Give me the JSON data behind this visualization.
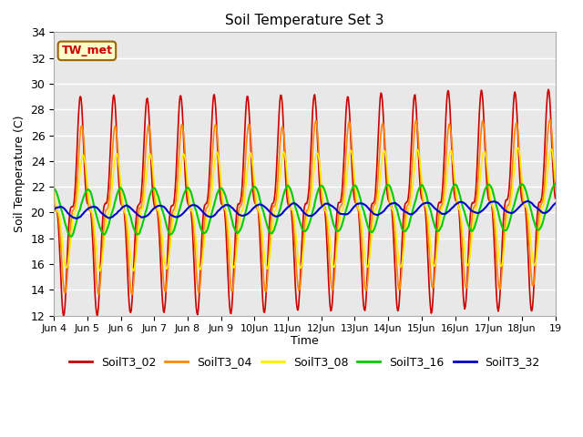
{
  "title": "Soil Temperature Set 3",
  "xlabel": "Time",
  "ylabel": "Soil Temperature (C)",
  "ylim": [
    12,
    34
  ],
  "yticks": [
    12,
    14,
    16,
    18,
    20,
    22,
    24,
    26,
    28,
    30,
    32,
    34
  ],
  "annotation": "TW_met",
  "bg_color": "#e8e8e8",
  "fig_color": "#ffffff",
  "series": {
    "SoilT3_02": {
      "color": "#cc0000",
      "lw": 1.2
    },
    "SoilT3_04": {
      "color": "#ff8800",
      "lw": 1.2
    },
    "SoilT3_08": {
      "color": "#ffee00",
      "lw": 1.2
    },
    "SoilT3_16": {
      "color": "#00cc00",
      "lw": 1.5
    },
    "SoilT3_32": {
      "color": "#0000cc",
      "lw": 1.5
    }
  },
  "xstart_day": 4,
  "xend_day": 19,
  "xtick_days": [
    4,
    5,
    6,
    7,
    8,
    9,
    10,
    11,
    12,
    13,
    14,
    15,
    16,
    17,
    18,
    19
  ],
  "points_per_day": 48
}
